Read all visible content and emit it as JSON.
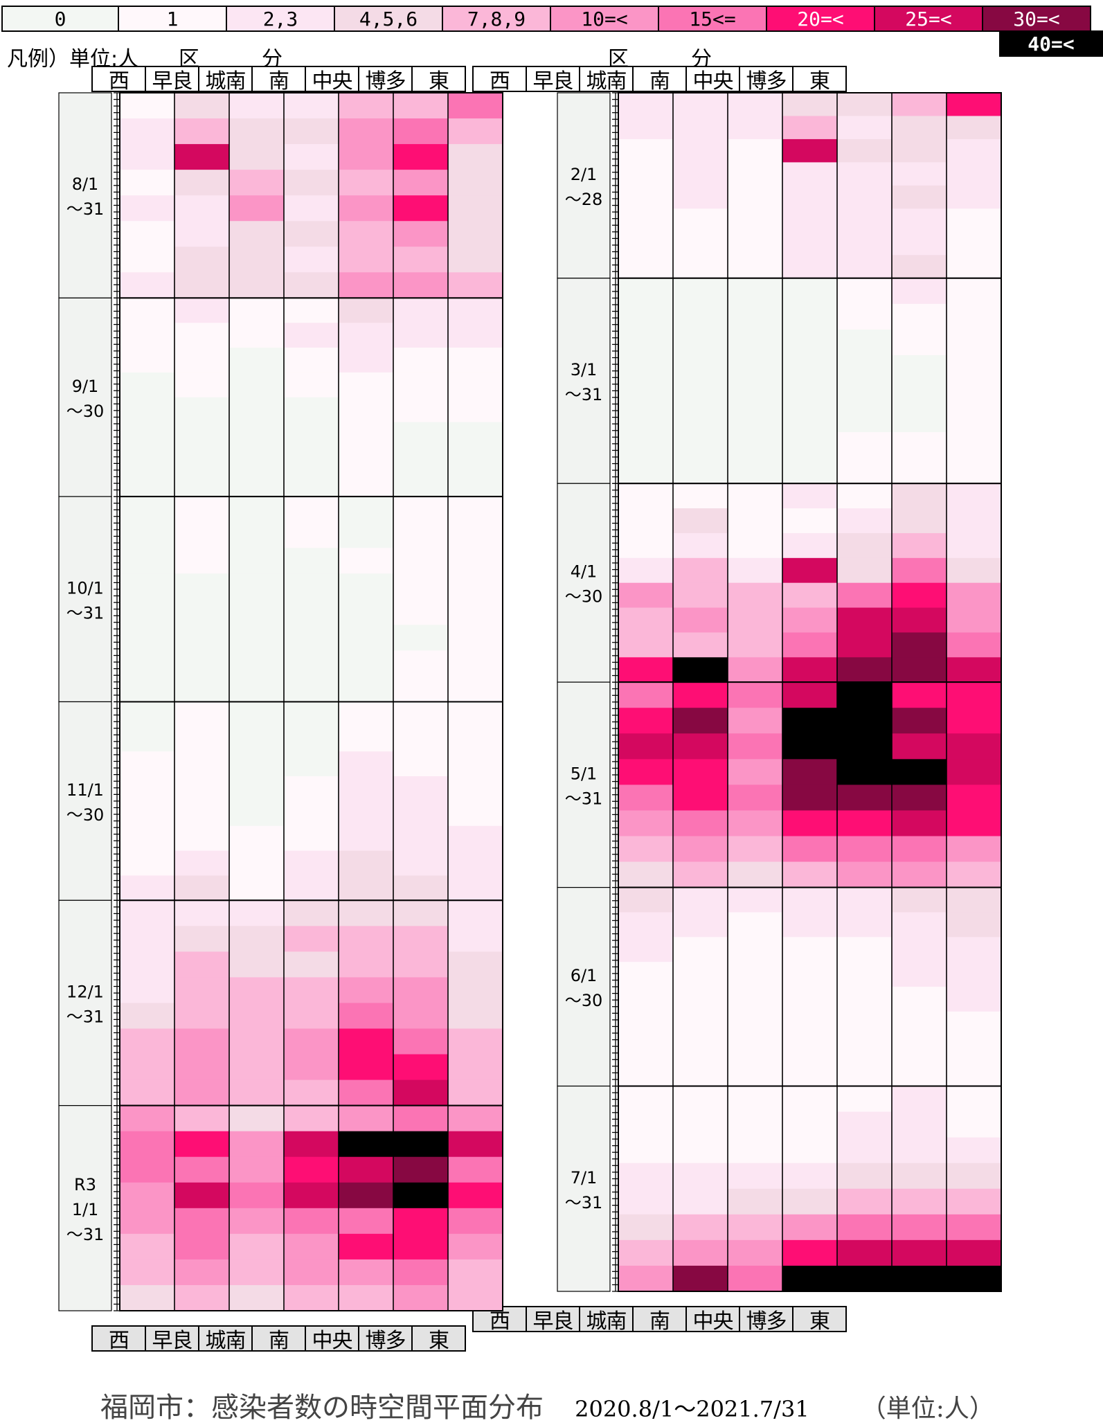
{
  "legend": {
    "label": "凡例）単位:人",
    "items": [
      {
        "label": "0",
        "color": "#f3f7f3"
      },
      {
        "label": "1",
        "color": "#fff8fb"
      },
      {
        "label": "2,3",
        "color": "#fce6f3"
      },
      {
        "label": "4,5,6",
        "color": "#f4dbe6"
      },
      {
        "label": "7,8,9",
        "color": "#fbb7d8"
      },
      {
        "label": "10=<",
        "color": "#fb95c6"
      },
      {
        "label": "15<=",
        "color": "#fb74b4"
      },
      {
        "label": "20=<",
        "color": "#fe0e74"
      },
      {
        "label": "25=<",
        "color": "#d4085f"
      },
      {
        "label": "30=<",
        "color": "#870842"
      },
      {
        "label": "40=<",
        "color": "#000000"
      }
    ]
  },
  "kubun_label": [
    "区",
    "分"
  ],
  "districts": [
    "西",
    "早良",
    "城南",
    "南",
    "中央",
    "博多",
    "東"
  ],
  "caption": {
    "title": "福岡市：感染者数の時空間平面分布",
    "range": "2020.8/1～2021.7/31",
    "unit": "（単位:人）"
  },
  "chart_data": {
    "type": "heatmap",
    "title": "福岡市：感染者数の時空間平面分布",
    "x_categories": [
      "西",
      "早良",
      "城南",
      "南",
      "中央",
      "博多",
      "東"
    ],
    "bins": [
      "0",
      "1",
      "2,3",
      "4,5,6",
      "7,8,9",
      "10=<",
      "15<=",
      "20=<",
      "25=<",
      "30=<",
      "40=<"
    ],
    "period": "2020.8/1～2021.7/31",
    "months": [
      {
        "label": [
          "8/1",
          "～31"
        ],
        "days": 31,
        "bands": [
          [
            1,
            3,
            2,
            2,
            4,
            4,
            6
          ],
          [
            2,
            4,
            3,
            3,
            5,
            6,
            4
          ],
          [
            2,
            8,
            3,
            2,
            5,
            7,
            3
          ],
          [
            1,
            3,
            4,
            3,
            4,
            5,
            3
          ],
          [
            2,
            2,
            5,
            2,
            5,
            7,
            3
          ],
          [
            1,
            2,
            3,
            3,
            4,
            5,
            3
          ],
          [
            1,
            3,
            3,
            2,
            4,
            4,
            3
          ],
          [
            2,
            3,
            3,
            3,
            5,
            5,
            4
          ]
        ]
      },
      {
        "label": [
          "9/1",
          "～30"
        ],
        "days": 30,
        "bands": [
          [
            1,
            2,
            1,
            1,
            3,
            2,
            2
          ],
          [
            1,
            1,
            1,
            2,
            2,
            2,
            2
          ],
          [
            1,
            1,
            0,
            1,
            2,
            1,
            1
          ],
          [
            0,
            1,
            0,
            1,
            1,
            1,
            1
          ],
          [
            0,
            0,
            0,
            0,
            1,
            1,
            1
          ],
          [
            0,
            0,
            0,
            0,
            1,
            0,
            0
          ],
          [
            0,
            0,
            0,
            0,
            1,
            0,
            0
          ],
          [
            0,
            0,
            0,
            0,
            1,
            0,
            0
          ]
        ]
      },
      {
        "label": [
          "10/1",
          "～31"
        ],
        "days": 31,
        "bands": [
          [
            0,
            1,
            0,
            1,
            0,
            1,
            1
          ],
          [
            0,
            1,
            0,
            1,
            0,
            1,
            1
          ],
          [
            0,
            1,
            0,
            0,
            1,
            1,
            1
          ],
          [
            0,
            0,
            0,
            0,
            0,
            1,
            1
          ],
          [
            0,
            0,
            0,
            0,
            0,
            1,
            1
          ],
          [
            0,
            0,
            0,
            0,
            0,
            0,
            1
          ],
          [
            0,
            0,
            0,
            0,
            0,
            1,
            1
          ],
          [
            0,
            0,
            0,
            0,
            0,
            1,
            1
          ]
        ]
      },
      {
        "label": [
          "11/1",
          "～30"
        ],
        "days": 30,
        "bands": [
          [
            0,
            1,
            0,
            0,
            1,
            1,
            1
          ],
          [
            0,
            1,
            0,
            0,
            1,
            1,
            1
          ],
          [
            1,
            1,
            0,
            0,
            2,
            1,
            1
          ],
          [
            1,
            1,
            0,
            1,
            2,
            2,
            1
          ],
          [
            1,
            1,
            0,
            1,
            2,
            2,
            1
          ],
          [
            1,
            1,
            1,
            1,
            2,
            2,
            2
          ],
          [
            1,
            2,
            1,
            2,
            3,
            2,
            2
          ],
          [
            2,
            3,
            1,
            2,
            3,
            3,
            2
          ]
        ]
      },
      {
        "label": [
          "12/1",
          "～31"
        ],
        "days": 31,
        "bands": [
          [
            2,
            2,
            2,
            3,
            3,
            3,
            2
          ],
          [
            2,
            3,
            3,
            4,
            4,
            4,
            2
          ],
          [
            2,
            4,
            3,
            3,
            4,
            4,
            3
          ],
          [
            2,
            4,
            4,
            4,
            5,
            5,
            3
          ],
          [
            3,
            4,
            4,
            4,
            6,
            5,
            3
          ],
          [
            4,
            5,
            4,
            5,
            7,
            6,
            4
          ],
          [
            4,
            5,
            4,
            5,
            7,
            7,
            4
          ],
          [
            4,
            5,
            4,
            4,
            6,
            8,
            4
          ]
        ]
      },
      {
        "label": [
          "R3",
          "1/1",
          "～31"
        ],
        "days": 31,
        "bands": [
          [
            5,
            4,
            3,
            4,
            5,
            6,
            5
          ],
          [
            6,
            7,
            5,
            8,
            10,
            10,
            8
          ],
          [
            6,
            6,
            5,
            7,
            8,
            9,
            6
          ],
          [
            5,
            8,
            6,
            8,
            9,
            10,
            7
          ],
          [
            5,
            6,
            5,
            6,
            6,
            7,
            6
          ],
          [
            4,
            6,
            4,
            5,
            7,
            7,
            5
          ],
          [
            4,
            5,
            4,
            5,
            5,
            6,
            4
          ],
          [
            3,
            4,
            3,
            4,
            4,
            5,
            4
          ]
        ]
      },
      {
        "label": [
          "2/1",
          "～28"
        ],
        "days": 28,
        "bands": [
          [
            2,
            2,
            2,
            3,
            3,
            4,
            7
          ],
          [
            2,
            2,
            2,
            4,
            2,
            3,
            3
          ],
          [
            1,
            2,
            1,
            8,
            3,
            3,
            2
          ],
          [
            1,
            2,
            1,
            2,
            2,
            2,
            2
          ],
          [
            1,
            2,
            1,
            2,
            2,
            3,
            2
          ],
          [
            1,
            1,
            1,
            2,
            2,
            2,
            1
          ],
          [
            1,
            1,
            1,
            2,
            2,
            2,
            1
          ],
          [
            1,
            1,
            1,
            2,
            2,
            3,
            1
          ]
        ]
      },
      {
        "label": [
          "3/1",
          "～31"
        ],
        "days": 31,
        "bands": [
          [
            0,
            0,
            0,
            0,
            1,
            2,
            1
          ],
          [
            0,
            0,
            0,
            0,
            1,
            1,
            1
          ],
          [
            0,
            0,
            0,
            0,
            0,
            1,
            1
          ],
          [
            0,
            0,
            0,
            0,
            0,
            0,
            1
          ],
          [
            0,
            0,
            0,
            0,
            0,
            0,
            1
          ],
          [
            0,
            0,
            0,
            0,
            0,
            0,
            1
          ],
          [
            0,
            0,
            0,
            0,
            1,
            1,
            1
          ],
          [
            0,
            0,
            0,
            0,
            1,
            1,
            1
          ]
        ]
      },
      {
        "label": [
          "4/1",
          "～30"
        ],
        "days": 30,
        "bands": [
          [
            1,
            1,
            1,
            2,
            1,
            3,
            2
          ],
          [
            1,
            3,
            1,
            1,
            2,
            3,
            2
          ],
          [
            1,
            2,
            1,
            2,
            3,
            4,
            2
          ],
          [
            2,
            4,
            2,
            8,
            3,
            6,
            3
          ],
          [
            5,
            4,
            4,
            4,
            6,
            7,
            5
          ],
          [
            4,
            5,
            4,
            5,
            8,
            8,
            5
          ],
          [
            4,
            4,
            4,
            6,
            8,
            9,
            6
          ],
          [
            7,
            10,
            5,
            8,
            9,
            9,
            8
          ]
        ]
      },
      {
        "label": [
          "5/1",
          "～31"
        ],
        "days": 31,
        "bands": [
          [
            6,
            7,
            6,
            8,
            10,
            7,
            7
          ],
          [
            7,
            9,
            5,
            10,
            10,
            9,
            7
          ],
          [
            8,
            8,
            6,
            10,
            10,
            8,
            8
          ],
          [
            7,
            7,
            5,
            9,
            10,
            10,
            8
          ],
          [
            6,
            7,
            6,
            9,
            9,
            9,
            7
          ],
          [
            5,
            6,
            5,
            7,
            7,
            8,
            7
          ],
          [
            4,
            5,
            4,
            6,
            6,
            6,
            5
          ],
          [
            3,
            4,
            3,
            4,
            5,
            5,
            4
          ]
        ]
      },
      {
        "label": [
          "6/1",
          "～30"
        ],
        "days": 30,
        "bands": [
          [
            3,
            2,
            2,
            2,
            2,
            3,
            3
          ],
          [
            2,
            2,
            1,
            2,
            2,
            2,
            3
          ],
          [
            2,
            1,
            1,
            1,
            1,
            2,
            2
          ],
          [
            1,
            1,
            1,
            1,
            1,
            2,
            2
          ],
          [
            1,
            1,
            1,
            1,
            1,
            1,
            2
          ],
          [
            1,
            1,
            1,
            1,
            1,
            1,
            1
          ],
          [
            1,
            1,
            1,
            1,
            1,
            1,
            1
          ],
          [
            1,
            1,
            1,
            1,
            1,
            1,
            1
          ]
        ]
      },
      {
        "label": [
          "7/1",
          "～31"
        ],
        "days": 31,
        "bands": [
          [
            1,
            1,
            1,
            1,
            1,
            2,
            1
          ],
          [
            1,
            1,
            1,
            1,
            2,
            2,
            1
          ],
          [
            1,
            1,
            1,
            1,
            2,
            2,
            2
          ],
          [
            2,
            2,
            2,
            2,
            3,
            3,
            3
          ],
          [
            2,
            2,
            3,
            3,
            4,
            4,
            4
          ],
          [
            3,
            4,
            4,
            5,
            6,
            6,
            6
          ],
          [
            4,
            5,
            5,
            7,
            8,
            8,
            8
          ],
          [
            5,
            9,
            6,
            10,
            10,
            10,
            10
          ]
        ]
      }
    ]
  }
}
